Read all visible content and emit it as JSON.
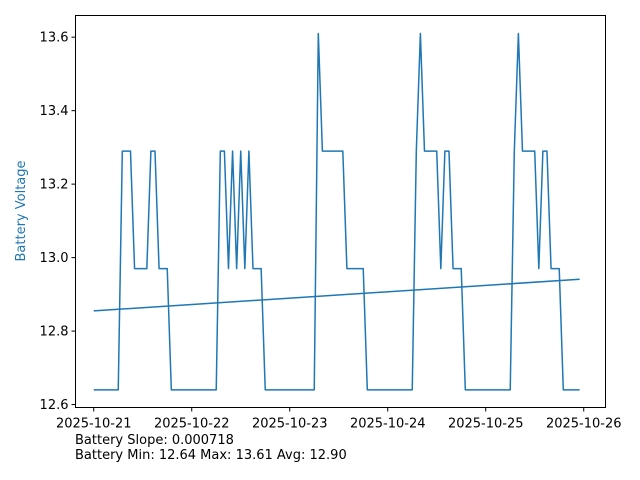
{
  "chart_data": {
    "type": "line",
    "ylabel": "Battery Voltage",
    "ylabel_color": "#1f77b4",
    "line_color": "#1f77b4",
    "x_tick_labels": [
      "2025-10-21",
      "2025-10-22",
      "2025-10-23",
      "2025-10-24",
      "2025-10-25",
      "2025-10-26"
    ],
    "y_tick_labels": [
      "12.6",
      "12.8",
      "13.0",
      "13.2",
      "13.4",
      "13.6"
    ],
    "y_ticks": [
      12.6,
      12.8,
      13.0,
      13.2,
      13.4,
      13.6
    ],
    "xlim": [
      "2025-10-20T19:32",
      "2025-10-26T05:20"
    ],
    "ylim": [
      12.592,
      13.659
    ],
    "grid": false,
    "series": [
      {
        "kind": "battery",
        "points": [
          [
            "2025-10-21T00:00",
            12.64
          ],
          [
            "2025-10-21T06:00",
            12.64
          ],
          [
            "2025-10-21T07:00",
            13.29
          ],
          [
            "2025-10-21T09:00",
            13.29
          ],
          [
            "2025-10-21T10:00",
            12.97
          ],
          [
            "2025-10-21T13:00",
            12.97
          ],
          [
            "2025-10-21T14:00",
            13.29
          ],
          [
            "2025-10-21T15:00",
            13.29
          ],
          [
            "2025-10-21T16:00",
            12.97
          ],
          [
            "2025-10-21T18:00",
            12.97
          ],
          [
            "2025-10-21T19:00",
            12.64
          ],
          [
            "2025-10-22T06:00",
            12.64
          ],
          [
            "2025-10-22T07:00",
            13.29
          ],
          [
            "2025-10-22T08:00",
            13.29
          ],
          [
            "2025-10-22T09:00",
            12.97
          ],
          [
            "2025-10-22T10:00",
            13.29
          ],
          [
            "2025-10-22T11:00",
            12.97
          ],
          [
            "2025-10-22T12:00",
            13.29
          ],
          [
            "2025-10-22T13:00",
            12.97
          ],
          [
            "2025-10-22T14:00",
            13.29
          ],
          [
            "2025-10-22T15:00",
            12.97
          ],
          [
            "2025-10-22T17:00",
            12.97
          ],
          [
            "2025-10-22T18:00",
            12.64
          ],
          [
            "2025-10-23T06:00",
            12.64
          ],
          [
            "2025-10-23T07:00",
            13.61
          ],
          [
            "2025-10-23T08:00",
            13.29
          ],
          [
            "2025-10-23T13:00",
            13.29
          ],
          [
            "2025-10-23T14:00",
            12.97
          ],
          [
            "2025-10-23T18:00",
            12.97
          ],
          [
            "2025-10-23T19:00",
            12.64
          ],
          [
            "2025-10-24T06:00",
            12.64
          ],
          [
            "2025-10-24T07:00",
            13.29
          ],
          [
            "2025-10-24T08:00",
            13.61
          ],
          [
            "2025-10-24T09:00",
            13.29
          ],
          [
            "2025-10-24T12:00",
            13.29
          ],
          [
            "2025-10-24T13:00",
            12.97
          ],
          [
            "2025-10-24T14:00",
            13.29
          ],
          [
            "2025-10-24T15:00",
            13.29
          ],
          [
            "2025-10-24T16:00",
            12.97
          ],
          [
            "2025-10-24T18:00",
            12.97
          ],
          [
            "2025-10-24T19:00",
            12.64
          ],
          [
            "2025-10-25T06:00",
            12.64
          ],
          [
            "2025-10-25T07:00",
            13.29
          ],
          [
            "2025-10-25T08:00",
            13.61
          ],
          [
            "2025-10-25T09:00",
            13.29
          ],
          [
            "2025-10-25T12:00",
            13.29
          ],
          [
            "2025-10-25T13:00",
            12.97
          ],
          [
            "2025-10-25T14:00",
            13.29
          ],
          [
            "2025-10-25T15:00",
            13.29
          ],
          [
            "2025-10-25T16:00",
            12.97
          ],
          [
            "2025-10-25T18:00",
            12.97
          ],
          [
            "2025-10-25T19:00",
            12.64
          ],
          [
            "2025-10-25T23:00",
            12.64
          ]
        ]
      },
      {
        "kind": "trend",
        "points": [
          [
            "2025-10-21T00:00",
            12.855
          ],
          [
            "2025-10-25T23:00",
            12.941
          ]
        ]
      }
    ]
  },
  "stats": {
    "slope_line": "Battery Slope: 0.000718",
    "range_line": "Battery Min: 12.64 Max: 13.61 Avg: 12.90"
  }
}
